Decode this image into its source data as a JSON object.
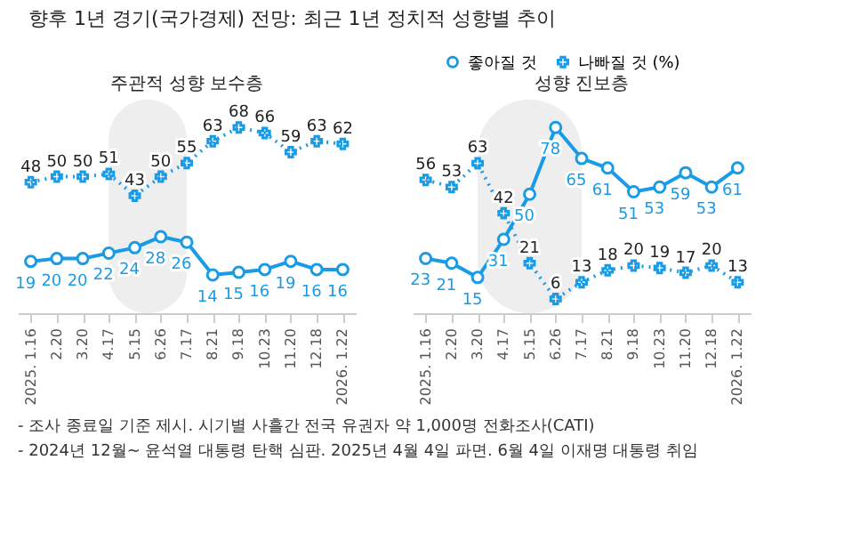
{
  "chart_data": [
    {
      "type": "other",
      "title": "향후 1년 경기(국가경제) 전망: 최근 1년 정치적 성향별 추이",
      "annotations": [
        "- 조사 종료일 기준 제시. 시기별 사흘간 전국 유권자 약 1,000명 전화조사(CATI)",
        "- 2024년 12월~ 윤석열 대통령 탄핵 심판. 2025년 4월 4일 파면. 6월 4일 이재명 대통령 취임"
      ]
    },
    {
      "type": "line",
      "title": "주관적 성향 보수층",
      "categories": [
        "2025. 1.16",
        "2.20",
        "3.20",
        "4.17",
        "5.15",
        "6.26",
        "7.17",
        "8.21",
        "9.18",
        "10.23",
        "11.20",
        "12.18",
        "2026. 1.22"
      ],
      "data_labels": true,
      "grid": false,
      "tick_labels": "x",
      "legend": "top right",
      "series": [
        {
          "name": "좋아질 것",
          "color": "#1a9be6",
          "marker": "circle",
          "line_style": "solid",
          "values": [
            19,
            20,
            20,
            22,
            24,
            28,
            26,
            14,
            15,
            16,
            19,
            16,
            16
          ]
        },
        {
          "name": "나빠질 것 (%)",
          "color": "#1a9be6",
          "marker": "cross",
          "line_style": "dotted",
          "values": [
            48,
            50,
            50,
            51,
            43,
            50,
            55,
            63,
            68,
            66,
            59,
            63,
            62
          ]
        }
      ],
      "bands": [
        {
          "axis": "x",
          "from": "4.17",
          "to": "7.17",
          "color": "#eeeeee"
        }
      ]
    },
    {
      "type": "line",
      "title": "성향 진보층",
      "categories": [
        "2025. 1.16",
        "2.20",
        "3.20",
        "4.17",
        "5.15",
        "6.26",
        "7.17",
        "8.21",
        "9.18",
        "10.23",
        "11.20",
        "12.18",
        "2026. 1.22"
      ],
      "data_labels": true,
      "grid": false,
      "tick_labels": "x",
      "legend": "top right",
      "series": [
        {
          "name": "좋아질 것",
          "color": "#1a9be6",
          "marker": "circle",
          "line_style": "solid",
          "values": [
            23,
            21,
            15,
            31,
            50,
            78,
            65,
            61,
            51,
            53,
            59,
            53,
            61
          ]
        },
        {
          "name": "나빠질 것 (%)",
          "color": "#1a9be6",
          "marker": "cross",
          "line_style": "dotted",
          "values": [
            56,
            53,
            63,
            42,
            21,
            6,
            13,
            18,
            20,
            19,
            17,
            20,
            13
          ]
        }
      ],
      "bands": [
        {
          "axis": "x",
          "from": "3.20",
          "to": "7.17",
          "color": "#eeeeee"
        }
      ]
    }
  ]
}
